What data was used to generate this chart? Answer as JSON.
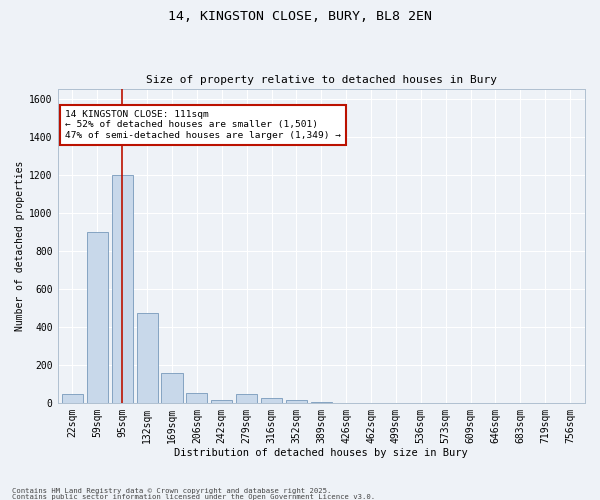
{
  "title1": "14, KINGSTON CLOSE, BURY, BL8 2EN",
  "title2": "Size of property relative to detached houses in Bury",
  "xlabel": "Distribution of detached houses by size in Bury",
  "ylabel": "Number of detached properties",
  "categories": [
    "22sqm",
    "59sqm",
    "95sqm",
    "132sqm",
    "169sqm",
    "206sqm",
    "242sqm",
    "279sqm",
    "316sqm",
    "352sqm",
    "389sqm",
    "426sqm",
    "462sqm",
    "499sqm",
    "536sqm",
    "573sqm",
    "609sqm",
    "646sqm",
    "683sqm",
    "719sqm",
    "756sqm"
  ],
  "values": [
    50,
    900,
    1200,
    475,
    160,
    55,
    15,
    50,
    28,
    18,
    8,
    0,
    0,
    0,
    0,
    0,
    0,
    0,
    0,
    0,
    0
  ],
  "bar_color": "#c8d8ea",
  "bar_edge_color": "#7799bb",
  "vline_x_index": 2,
  "vline_color": "#bb1100",
  "annotation_text": "14 KINGSTON CLOSE: 111sqm\n← 52% of detached houses are smaller (1,501)\n47% of semi-detached houses are larger (1,349) →",
  "annotation_box_facecolor": "#ffffff",
  "annotation_box_edgecolor": "#bb1100",
  "ylim": [
    0,
    1650
  ],
  "yticks": [
    0,
    200,
    400,
    600,
    800,
    1000,
    1200,
    1400,
    1600
  ],
  "footer1": "Contains HM Land Registry data © Crown copyright and database right 2025.",
  "footer2": "Contains public sector information licensed under the Open Government Licence v3.0.",
  "bg_color": "#eef2f7",
  "grid_color": "#ffffff",
  "spine_color": "#b0c0d0"
}
